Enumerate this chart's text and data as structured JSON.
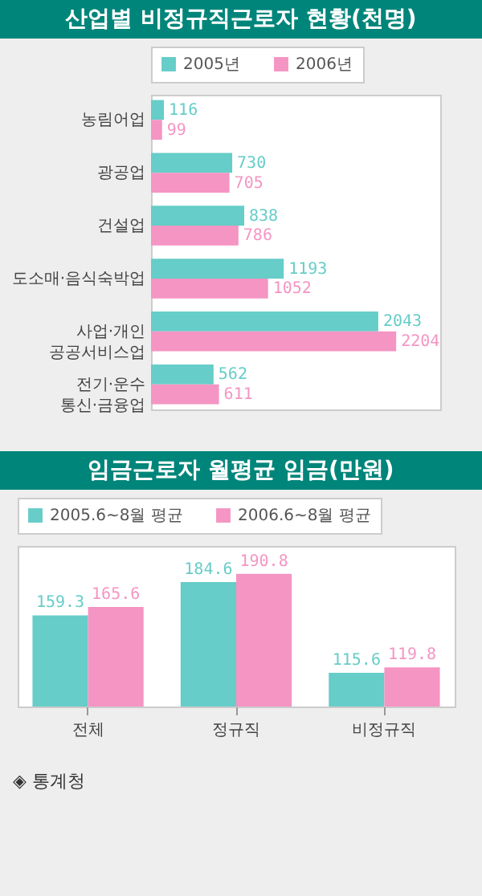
{
  "chart_data": [
    {
      "type": "bar",
      "orientation": "horizontal",
      "title": "산업별 비정규직근로자 현황(천명)",
      "categories": [
        "농림어업",
        "광공업",
        "건설업",
        "도소매·음식숙박업",
        "사업·개인\n공공서비스업",
        "전기·운수\n통신·금융업"
      ],
      "series": [
        {
          "name": "2005년",
          "color": "#66cdc8",
          "values": [
            116,
            730,
            838,
            1193,
            2043,
            562
          ]
        },
        {
          "name": "2006년",
          "color": "#f495c3",
          "values": [
            99,
            705,
            786,
            1052,
            2204,
            611
          ]
        }
      ],
      "xlim": [
        0,
        2600
      ],
      "data_labels": true,
      "legend": "top left",
      "tick_labels": "y"
    },
    {
      "type": "bar",
      "title": "임금근로자 월평균 임금(만원)",
      "categories": [
        "전체",
        "정규직",
        "비정규직"
      ],
      "series": [
        {
          "name": "2005.6~8월 평균",
          "color": "#66cdc8",
          "values": [
            159.3,
            184.6,
            115.6
          ]
        },
        {
          "name": "2006.6~8월 평균",
          "color": "#f495c3",
          "values": [
            165.6,
            190.8,
            119.8
          ]
        }
      ],
      "ylim": [
        90,
        212
      ],
      "data_labels": true,
      "legend": "top left",
      "tick_labels": "x",
      "annotations": [
        "◈ 통계청"
      ]
    }
  ]
}
